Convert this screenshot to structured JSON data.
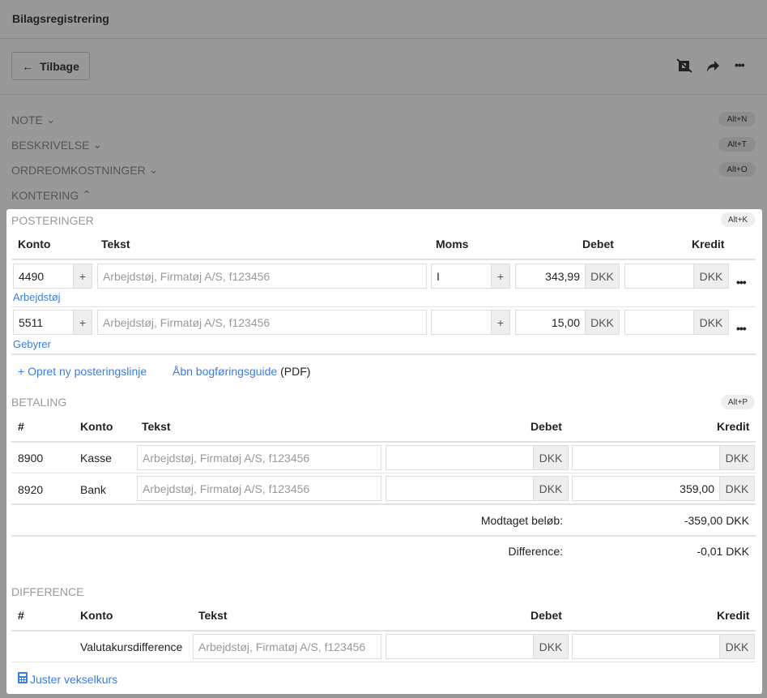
{
  "header": {
    "title": "Bilagsregistrering",
    "back_label": "Tilbage"
  },
  "sections": [
    {
      "label": "NOTE",
      "shortcut": "Alt+N"
    },
    {
      "label": "BESKRIVELSE",
      "shortcut": "Alt+T"
    },
    {
      "label": "ORDREOMKOSTNINGER",
      "shortcut": "Alt+O"
    },
    {
      "label": "KONTERING"
    }
  ],
  "posteringer": {
    "label": "POSTERINGER",
    "shortcut": "Alt+K",
    "columns": [
      "Konto",
      "Tekst",
      "Moms",
      "Debet",
      "Kredit"
    ],
    "rows": [
      {
        "konto": "4490",
        "account_name": "Arbejdstøj",
        "text_placeholder": "Arbejdstøj, Firmatøj A/S, f123456",
        "moms": "I",
        "debet": "343,99",
        "kredit": "",
        "currency": "DKK"
      },
      {
        "konto": "5511",
        "account_name": "Gebyrer",
        "text_placeholder": "Arbejdstøj, Firmatøj A/S, f123456",
        "moms": "",
        "debet": "15,00",
        "kredit": "",
        "currency": "DKK"
      }
    ],
    "add_line": "+ Opret ny posteringslinje",
    "guide_link": "Åbn bogføringsguide",
    "guide_suffix": "(PDF)"
  },
  "betaling": {
    "label": "BETALING",
    "shortcut": "Alt+P",
    "columns": [
      "#",
      "Konto",
      "Tekst",
      "Debet",
      "Kredit"
    ],
    "rows": [
      {
        "nr": "8900",
        "konto": "Kasse",
        "text_placeholder": "Arbejdstøj, Firmatøj A/S, f123456",
        "debet": "",
        "kredit": "",
        "currency": "DKK"
      },
      {
        "nr": "8920",
        "konto": "Bank",
        "text_placeholder": "Arbejdstøj, Firmatøj A/S, f123456",
        "debet": "",
        "kredit": "359,00",
        "currency": "DKK"
      }
    ],
    "received_label": "Modtaget beløb:",
    "received_value": "-359,00 DKK",
    "difference_label": "Difference:",
    "difference_value": "-0,01 DKK"
  },
  "difference": {
    "label": "DIFFERENCE",
    "columns": [
      "#",
      "Konto",
      "Tekst",
      "Debet",
      "Kredit"
    ],
    "row": {
      "konto": "Valutakursdifference",
      "text_placeholder": "Arbejdstøj, Firmatøj A/S, f123456",
      "debet": "",
      "kredit": "",
      "currency": "DKK"
    },
    "adjust_link": "Juster vekselkurs"
  },
  "colors": {
    "overlay": "#999999",
    "link": "#3b7ddd"
  }
}
